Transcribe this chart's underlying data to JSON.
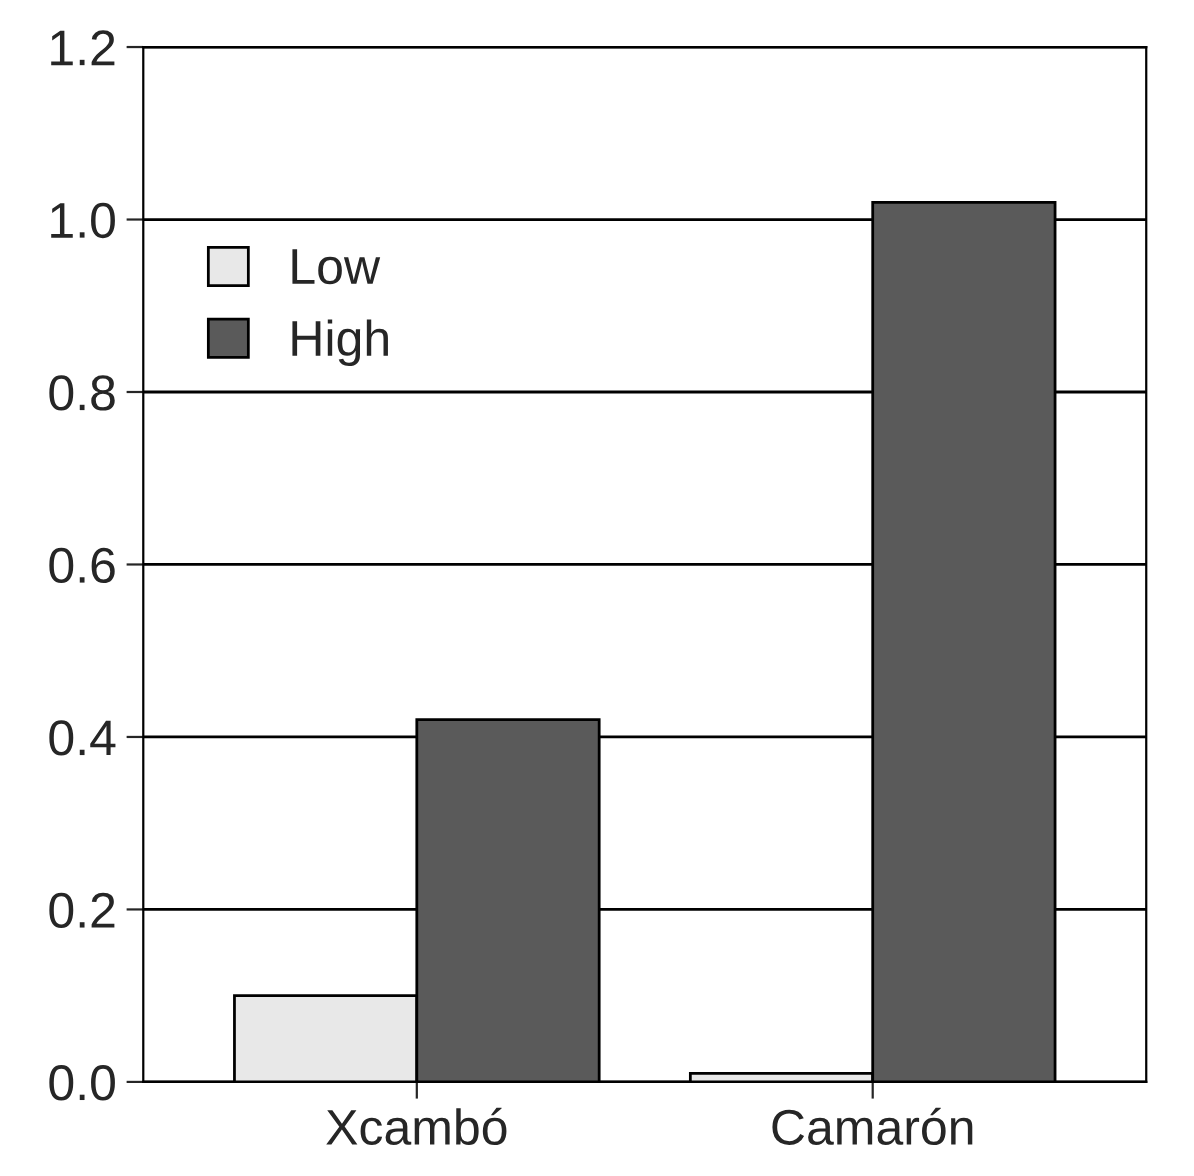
{
  "chart_data": {
    "type": "bar",
    "categories": [
      "Xcambó",
      "Camarón"
    ],
    "series": [
      {
        "name": "Low",
        "color": "#e8e8e8",
        "values": [
          0.1,
          0.01
        ]
      },
      {
        "name": "High",
        "color": "#5a5a5a",
        "values": [
          0.42,
          1.02
        ]
      }
    ],
    "ylim": [
      0,
      1.2
    ],
    "yticks": [
      {
        "value": 0,
        "label": "0.0"
      },
      {
        "value": 0.2,
        "label": "0.2"
      },
      {
        "value": 0.4,
        "label": "0.4"
      },
      {
        "value": 0.6,
        "label": "0.6"
      },
      {
        "value": 0.8,
        "label": "0.8"
      },
      {
        "value": 1.0,
        "label": "1.0"
      },
      {
        "value": 1.2,
        "label": "1.2"
      }
    ],
    "grid": "y",
    "legend": "top left"
  }
}
